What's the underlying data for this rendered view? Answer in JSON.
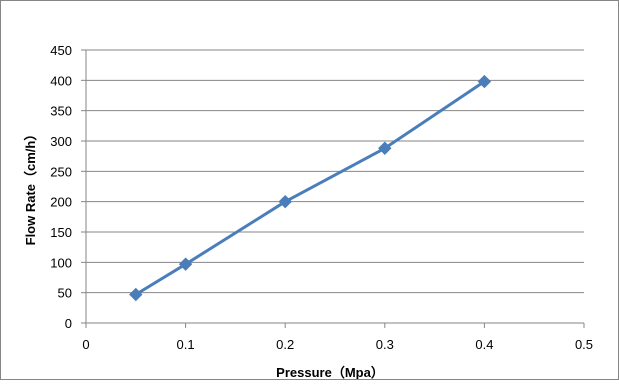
{
  "chart_data": {
    "type": "line",
    "title": "",
    "xlabel": "Pressure（Mpa）",
    "ylabel": "Flow Rate（cm/h）",
    "xlim": [
      0,
      0.5
    ],
    "ylim": [
      0,
      450
    ],
    "x_ticks": [
      "0",
      "0.1",
      "0.2",
      "0.3",
      "0.4",
      "0.5"
    ],
    "y_ticks": [
      "0",
      "50",
      "100",
      "150",
      "200",
      "250",
      "300",
      "350",
      "400",
      "450"
    ],
    "grid": "horizontal",
    "legend": "none",
    "series": [
      {
        "color": "#4a7ebb",
        "marker": "diamond",
        "x": [
          0.05,
          0.1,
          0.2,
          0.3,
          0.4
        ],
        "y": [
          47,
          97,
          200,
          288,
          398
        ]
      }
    ]
  }
}
